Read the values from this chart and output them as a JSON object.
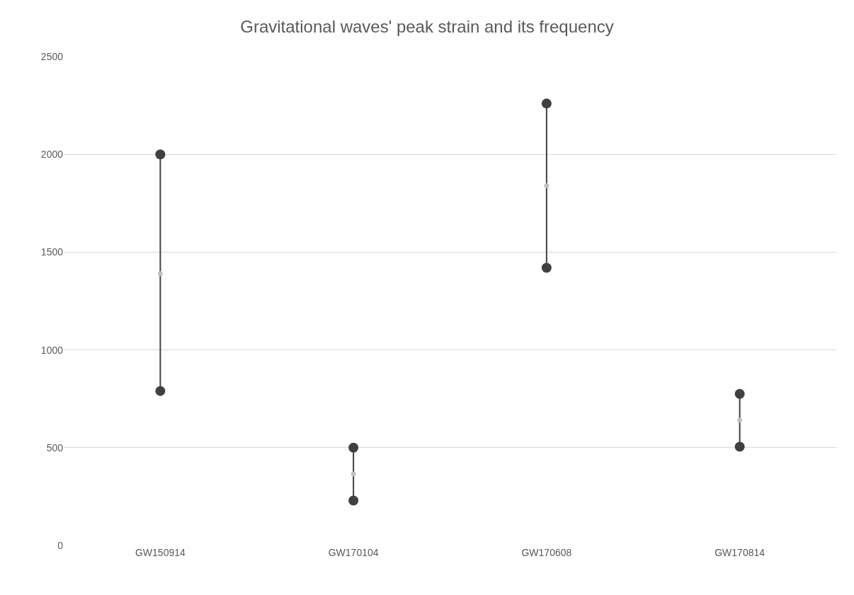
{
  "chart_data": {
    "type": "scatter",
    "title": "Gravitational waves' peak strain and its frequency",
    "categories": [
      "GW150914",
      "GW170104",
      "GW170608",
      "GW170814"
    ],
    "series": [
      {
        "color": "#404040",
        "values": [
          2000,
          500,
          2260,
          775
        ]
      },
      {
        "color": "#404040",
        "values": [
          790,
          230,
          1420,
          505
        ]
      },
      {
        "color": "#c0c0c0",
        "values": [
          1390,
          365,
          1840,
          640
        ]
      }
    ],
    "ylim": [
      0,
      2500
    ],
    "yticks": [
      0,
      500,
      1000,
      1500,
      2000,
      2500
    ],
    "grid": "y",
    "marker": "circle"
  }
}
